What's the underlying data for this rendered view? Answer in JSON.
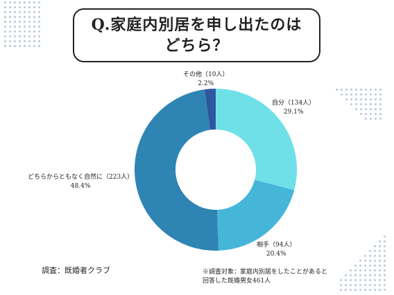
{
  "title": {
    "line1": "Q.家庭内別居を申し出たのは",
    "line2": "どちら？"
  },
  "chart_data": {
    "type": "pie",
    "style": "donut",
    "start": "top, clockwise",
    "slices": [
      {
        "label": "自分（134人）",
        "percent_label": "29.1%",
        "value": 29.1,
        "color": "#6fe0e8"
      },
      {
        "label": "相手（94人）",
        "percent_label": "20.4%",
        "value": 20.4,
        "color": "#45b6d8"
      },
      {
        "label": "どちらからともなく自然に（223人）",
        "percent_label": "48.4%",
        "value": 48.4,
        "color": "#2e85b3"
      },
      {
        "label": "その他（10人）",
        "percent_label": "2.2%",
        "value": 2.2,
        "color": "#2f57a0"
      }
    ]
  },
  "footer": {
    "source": "調査：既婚者クラブ",
    "note_line1": "※調査対象：家庭内別居をしたことがあると",
    "note_line2": "回答した既婚男女461人"
  }
}
